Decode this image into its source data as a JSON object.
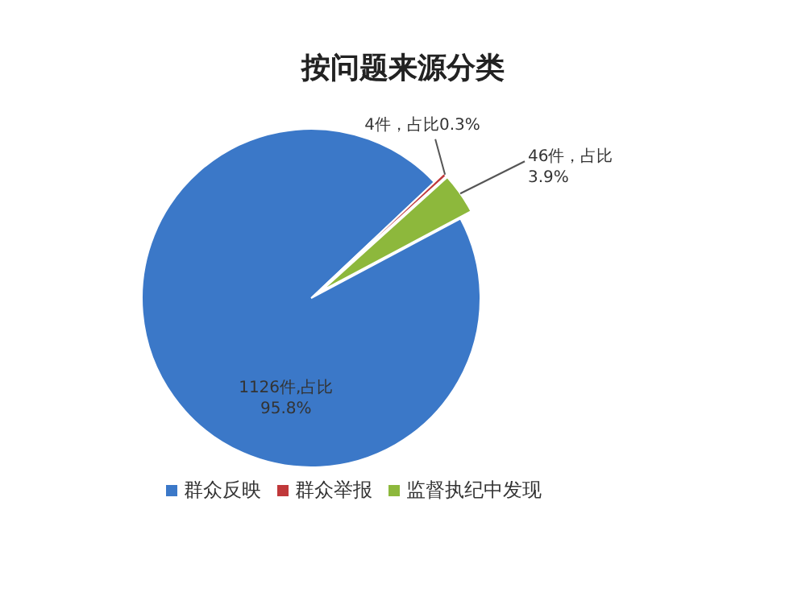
{
  "chart_data": {
    "type": "pie",
    "title": "按问题来源分类",
    "categories": [
      "群众反映",
      "群众举报",
      "监督执纪中发现"
    ],
    "values": [
      1126,
      4,
      46
    ],
    "colors": [
      "#3b78c8",
      "#c0383a",
      "#8db83c"
    ],
    "value_labels": [
      "1126件,占比\n95.8%",
      "4件，占比0.3%",
      "46件，占比\n3.9%"
    ],
    "legend": "bottom"
  }
}
